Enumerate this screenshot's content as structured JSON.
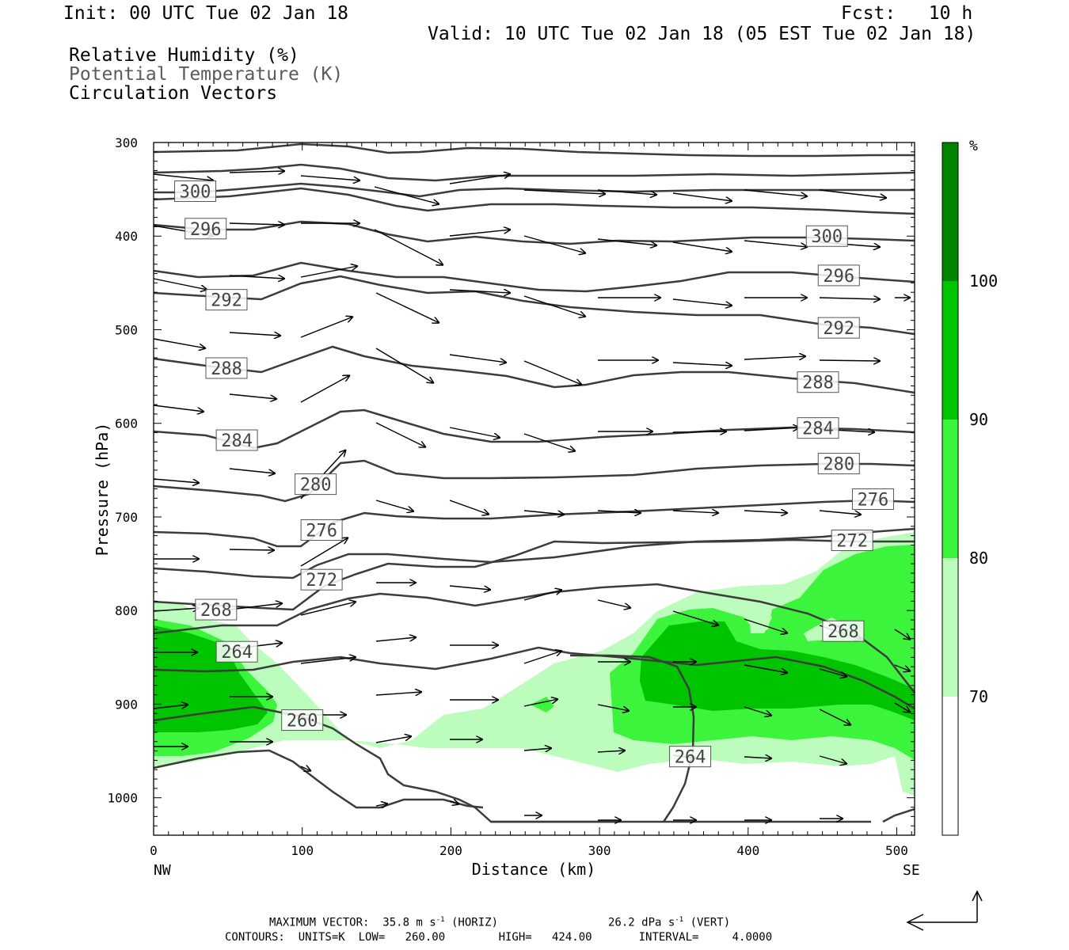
{
  "header": {
    "init": "Init: 00 UTC Tue 02 Jan 18",
    "fcst": "Fcst:   10 h",
    "valid": "Valid: 10 UTC Tue 02 Jan 18 (05 EST Tue 02 Jan 18)",
    "legend": [
      "Relative Humidity (%)",
      "Potential Temperature (K)",
      "Circulation Vectors"
    ]
  },
  "chart_data": {
    "type": "cross-section",
    "xlabel": "Distance (km)",
    "ylabel": "Pressure (hPa)",
    "xlim": [
      0,
      512
    ],
    "ylim": [
      1040,
      300
    ],
    "x_ticks": [
      0,
      100,
      200,
      300,
      400,
      500
    ],
    "y_ticks": [
      300,
      400,
      500,
      600,
      700,
      800,
      900,
      1000
    ],
    "endpoints": {
      "left": "NW",
      "right": "SE"
    },
    "colorbar": {
      "unit": "%",
      "levels": [
        70,
        80,
        90,
        100
      ],
      "colors": [
        "#ffffff",
        "#bcfcbc",
        "#3cf43c",
        "#00c400",
        "#008400"
      ]
    },
    "theta_labels": [
      {
        "value": "300",
        "x": 28,
        "p": 352
      },
      {
        "value": "296",
        "x": 35,
        "p": 392
      },
      {
        "value": "292",
        "x": 49,
        "p": 468
      },
      {
        "value": "288",
        "x": 49,
        "p": 541
      },
      {
        "value": "284",
        "x": 56,
        "p": 618
      },
      {
        "value": "280",
        "x": 109,
        "p": 665
      },
      {
        "value": "276",
        "x": 113,
        "p": 714
      },
      {
        "value": "272",
        "x": 113,
        "p": 767
      },
      {
        "value": "268",
        "x": 42,
        "p": 799
      },
      {
        "value": "264",
        "x": 56,
        "p": 844
      },
      {
        "value": "260",
        "x": 100,
        "p": 917
      },
      {
        "value": "264",
        "x": 361,
        "p": 956
      },
      {
        "value": "268",
        "x": 464,
        "p": 822
      },
      {
        "value": "272",
        "x": 470,
        "p": 725
      },
      {
        "value": "276",
        "x": 484,
        "p": 681
      },
      {
        "value": "280",
        "x": 461,
        "p": 643
      },
      {
        "value": "284",
        "x": 447,
        "p": 605
      },
      {
        "value": "288",
        "x": 447,
        "p": 556
      },
      {
        "value": "292",
        "x": 461,
        "p": 498
      },
      {
        "value": "296",
        "x": 461,
        "p": 442
      },
      {
        "value": "300",
        "x": 453,
        "p": 400
      }
    ]
  },
  "footer": {
    "max_vector": "MAXIMUM VECTOR:  35.8 m s",
    "max_vector_sup": "-1",
    "max_vector_unit": " (HORIZ)",
    "vert": "26.2 dPa s",
    "vert_sup": "-1",
    "vert_unit": " (VERT)",
    "contours": "CONTOURS:  UNITS=K  LOW=   260.00        HIGH=   424.00       INTERVAL=     4.0000"
  }
}
